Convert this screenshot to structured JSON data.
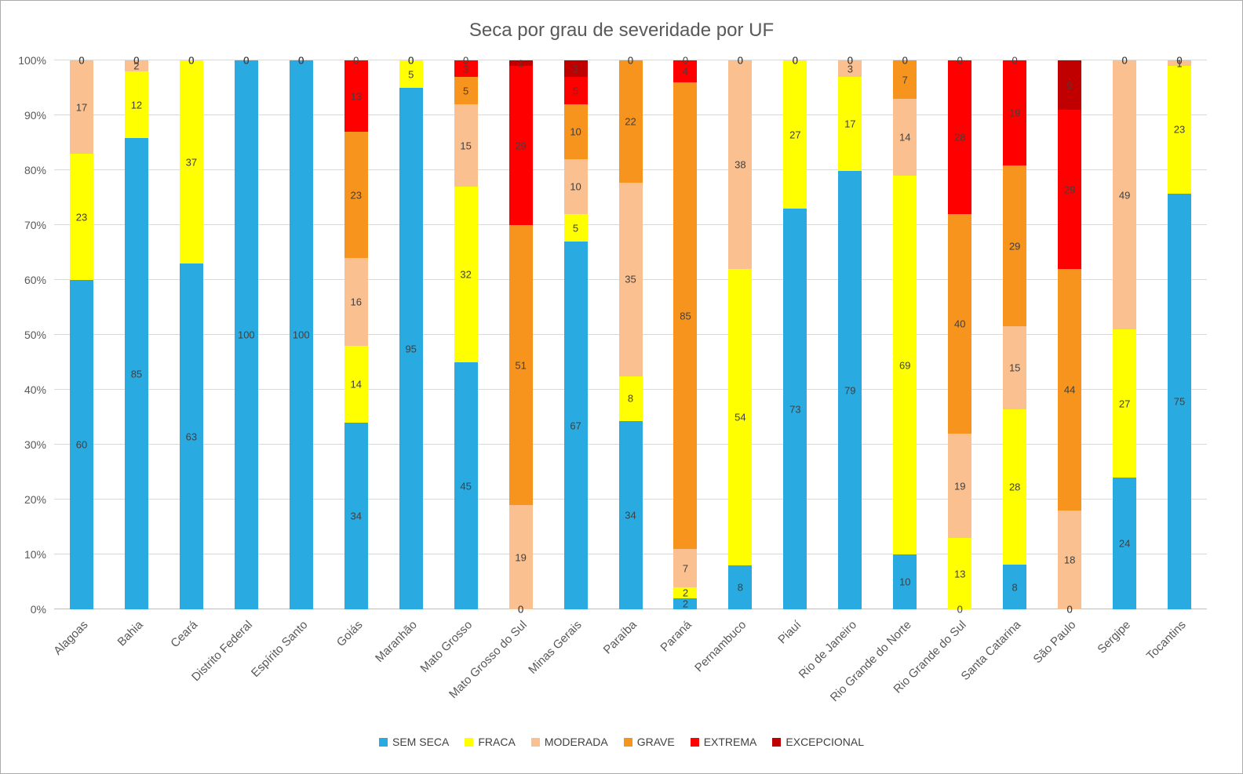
{
  "chart_data": {
    "type": "bar",
    "subtype": "100-percent-stacked-column",
    "title": "Seca por grau de severidade por UF",
    "grid": true,
    "legend_position": "bottom",
    "ylim": [
      0,
      100
    ],
    "y_ticks": [
      "0%",
      "10%",
      "20%",
      "30%",
      "40%",
      "50%",
      "60%",
      "70%",
      "80%",
      "90%",
      "100%"
    ],
    "categories": [
      "Alagoas",
      "Bahia",
      "Ceará",
      "Distrito Federal",
      "Espírito Santo",
      "Goiás",
      "Maranhão",
      "Mato Grosso",
      "Mato Grosso do Sul",
      "Minas Gerais",
      "Paraíba",
      "Paraná",
      "Pernambuco",
      "Piauí",
      "Rio de Janeiro",
      "Rio Grande do Norte",
      "Rio Grande do Sul",
      "Santa Catarina",
      "São Paulo",
      "Sergipe",
      "Tocantins"
    ],
    "series": [
      {
        "name": "SEM SECA",
        "color": "#29ABE2",
        "values": [
          60,
          85,
          63,
          100,
          100,
          34,
          95,
          45,
          0,
          67,
          34,
          2,
          8,
          73,
          79,
          10,
          0,
          8,
          0,
          24,
          75
        ]
      },
      {
        "name": "FRACA",
        "color": "#FFFF00",
        "values": [
          23,
          12,
          37,
          0,
          0,
          14,
          5,
          32,
          0,
          5,
          8,
          2,
          54,
          27,
          17,
          69,
          13,
          28,
          0,
          27,
          23
        ]
      },
      {
        "name": "MODERADA",
        "color": "#FAC090",
        "values": [
          17,
          2,
          0,
          0,
          0,
          16,
          0,
          15,
          19,
          10,
          35,
          7,
          38,
          0,
          3,
          14,
          19,
          15,
          18,
          49,
          1
        ]
      },
      {
        "name": "GRAVE",
        "color": "#F7941D",
        "values": [
          0,
          0,
          0,
          0,
          0,
          23,
          0,
          5,
          51,
          10,
          22,
          85,
          0,
          0,
          0,
          7,
          40,
          29,
          44,
          0,
          0
        ]
      },
      {
        "name": "EXTREMA",
        "color": "#FF0000",
        "values": [
          0,
          0,
          0,
          0,
          0,
          13,
          0,
          3,
          29,
          5,
          0,
          4,
          0,
          0,
          0,
          0,
          28,
          19,
          29,
          0,
          0
        ]
      },
      {
        "name": "EXCEPCIONAL",
        "color": "#C00000",
        "values": [
          0,
          0,
          0,
          0,
          0,
          0,
          0,
          0,
          1,
          3,
          0,
          0,
          0,
          0,
          0,
          0,
          0,
          0,
          9,
          0,
          0
        ]
      }
    ]
  }
}
